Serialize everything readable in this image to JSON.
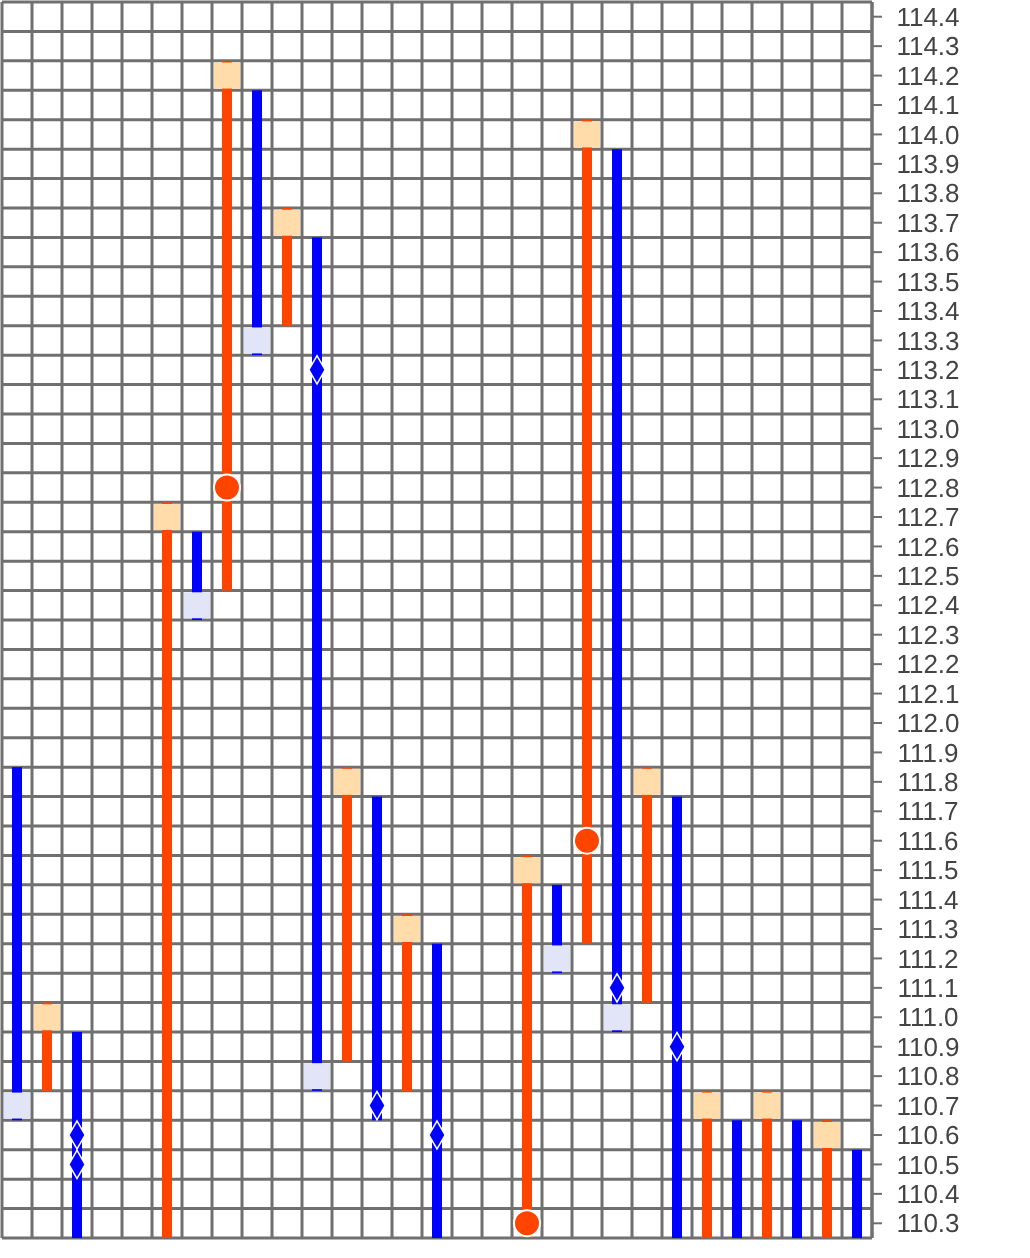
{
  "chart_data": {
    "type": "bar",
    "categories": [
      null,
      null,
      null,
      null,
      null,
      null,
      null,
      null,
      null,
      null,
      null,
      null,
      null,
      null,
      null,
      null,
      null,
      null,
      null,
      null,
      null,
      null,
      null,
      null,
      null,
      null,
      null,
      null,
      null
    ],
    "base": [
      110.65,
      110.75,
      110.25,
      null,
      null,
      110.25,
      112.35,
      112.45,
      113.25,
      113.35,
      110.75,
      110.85,
      110.65,
      110.75,
      110.25,
      null,
      null,
      110.25,
      111.15,
      111.25,
      110.95,
      111.05,
      110.25,
      110.25,
      110.25,
      110.25,
      110.25,
      110.25,
      110.25
    ],
    "values": [
      1.2,
      0.3,
      0.7,
      null,
      null,
      2.5,
      0.3,
      1.8,
      0.9,
      0.4,
      2.9,
      1.0,
      1.1,
      0.6,
      1.0,
      null,
      null,
      1.3,
      0.3,
      2.8,
      3.0,
      0.8,
      1.5,
      0.5,
      0.4,
      0.5,
      0.4,
      0.4,
      0.3
    ],
    "colors": [
      "#0000ff",
      "#ff4400",
      "#0000ff",
      null,
      null,
      "#ff4400",
      "#0000ff",
      "#ff4400",
      "#0000ff",
      "#ff4400",
      "#0000ff",
      "#ff4400",
      "#0000ff",
      "#ff4400",
      "#0000ff",
      null,
      null,
      "#ff4400",
      "#0000ff",
      "#ff4400",
      "#0000ff",
      "#ff4400",
      "#0000ff",
      "#ff4400",
      "#0000ff",
      "#ff4400",
      "#0000ff",
      "#ff4400",
      "#0000ff"
    ],
    "series": [
      {
        "type": "scatter",
        "marker": "square",
        "color": "#ffdcaa",
        "values": [
          null,
          111.0,
          null,
          null,
          null,
          112.7,
          null,
          114.2,
          null,
          113.7,
          null,
          111.8,
          null,
          111.3,
          null,
          null,
          null,
          111.5,
          null,
          114.0,
          null,
          111.8,
          null,
          110.7,
          null,
          110.7,
          null,
          110.6,
          null
        ]
      },
      {
        "type": "scatter",
        "marker": "square",
        "color": "#e1e5f7",
        "values": [
          110.7,
          null,
          null,
          null,
          null,
          null,
          112.4,
          null,
          113.3,
          null,
          110.8,
          null,
          null,
          null,
          null,
          null,
          null,
          null,
          111.2,
          null,
          111.0,
          null,
          null,
          null,
          null,
          null,
          null,
          null,
          null
        ]
      },
      {
        "type": "scatter",
        "marker": "circle",
        "color": "#ff4400",
        "values": [
          null,
          null,
          null,
          null,
          null,
          null,
          null,
          112.8,
          null,
          null,
          null,
          null,
          null,
          null,
          null,
          null,
          null,
          110.3,
          null,
          111.6,
          null,
          null,
          null,
          null,
          null,
          null,
          null,
          null,
          null
        ]
      },
      {
        "type": "scatter",
        "marker": "diamond",
        "color": "#0000ff",
        "values": [
          null,
          null,
          110.6,
          null,
          null,
          null,
          null,
          null,
          null,
          null,
          113.2,
          null,
          110.7,
          null,
          110.6,
          null,
          null,
          null,
          null,
          null,
          111.1,
          null,
          110.9,
          null,
          null,
          null,
          null,
          null,
          null
        ]
      },
      {
        "type": "scatter",
        "marker": "diamond",
        "color": "#0000ff",
        "values": [
          null,
          null,
          110.5,
          null,
          null,
          null,
          null,
          null,
          null,
          null,
          null,
          null,
          null,
          null,
          null,
          null,
          null,
          null,
          null,
          null,
          null,
          null,
          null,
          null,
          null,
          null,
          null,
          null,
          null
        ]
      }
    ],
    "ylim": [
      110.25,
      114.45
    ],
    "yticks": [
      110.3,
      110.4,
      110.5,
      110.6,
      110.7,
      110.8,
      110.9,
      {
        "value": 111,
        "label": "111.0"
      },
      111.1,
      111.2,
      111.3,
      111.4,
      111.5,
      111.6,
      111.7,
      111.8,
      111.9,
      {
        "value": 112,
        "label": "112.0"
      },
      112.1,
      112.2,
      112.3,
      112.4,
      112.5,
      112.6,
      112.7,
      112.8,
      112.9,
      {
        "value": 113,
        "label": "113.0"
      },
      113.1,
      113.2,
      113.3,
      113.4,
      113.5,
      113.6,
      113.7,
      113.8,
      113.9,
      {
        "value": 114,
        "label": "114.0"
      },
      114.1,
      114.2,
      114.3,
      114.4
    ],
    "grid": true,
    "tick_labels": "y"
  }
}
